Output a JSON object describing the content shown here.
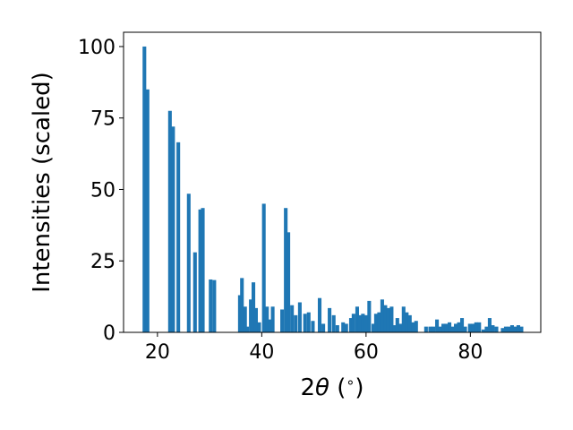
{
  "chart_data": {
    "type": "bar",
    "xlabel": "2θ (°)",
    "xlabel_prefix": "2",
    "xlabel_symbol": "θ",
    "xlabel_suffix": " (",
    "xlabel_degree": "∘",
    "xlabel_close": ")",
    "ylabel": "Intensities (scaled)",
    "xlim": [
      13.5,
      93.5
    ],
    "ylim": [
      0,
      105
    ],
    "xticks": [
      20,
      40,
      60,
      80
    ],
    "yticks": [
      0,
      25,
      50,
      75,
      100
    ],
    "bar_width": 0.7,
    "color": "#1f77b4",
    "grid": false,
    "x": [
      17.5,
      18.1,
      22.4,
      23.0,
      24.0,
      26.0,
      27.2,
      28.2,
      28.7,
      30.2,
      30.9,
      35.8,
      36.2,
      36.8,
      37.2,
      37.9,
      38.4,
      38.9,
      39.5,
      40.4,
      41.0,
      41.5,
      42.1,
      43.9,
      44.6,
      45.1,
      45.8,
      46.5,
      47.3,
      48.3,
      49.0,
      49.8,
      51.1,
      51.8,
      53.0,
      53.8,
      54.5,
      55.6,
      56.2,
      57.1,
      57.6,
      58.3,
      58.8,
      59.4,
      60.0,
      60.6,
      61.4,
      61.9,
      62.5,
      63.1,
      63.7,
      64.3,
      64.9,
      65.5,
      66.0,
      66.6,
      67.2,
      67.8,
      68.4,
      69.0,
      69.6,
      71.5,
      72.3,
      72.9,
      73.6,
      74.2,
      74.8,
      75.4,
      76.0,
      76.6,
      77.2,
      77.8,
      78.4,
      79.0,
      79.9,
      80.5,
      81.1,
      81.7,
      82.5,
      83.1,
      83.7,
      84.3,
      85.0,
      86.2,
      86.8,
      87.4,
      88.0,
      88.6,
      89.2,
      89.8
    ],
    "values": [
      100,
      85,
      77.5,
      72,
      66.5,
      48.5,
      28,
      43,
      43.5,
      18.5,
      18.3,
      13,
      19,
      9,
      2,
      11.5,
      17.5,
      8.5,
      3.5,
      45,
      9,
      4.5,
      9,
      8,
      43.5,
      35,
      9.5,
      6,
      10.5,
      6.5,
      7,
      4,
      12,
      3,
      8.5,
      6,
      2.5,
      3.5,
      3,
      5,
      6.5,
      9,
      6,
      6.5,
      6,
      11,
      3,
      6.5,
      7,
      11.5,
      9.5,
      8.5,
      9,
      2.5,
      5,
      3,
      9,
      7,
      6,
      3.5,
      4,
      2,
      2,
      2,
      4.5,
      2,
      3,
      3,
      3.5,
      2,
      3,
      3.5,
      5,
      2,
      3,
      3,
      3.5,
      3.5,
      1,
      2,
      5,
      2.5,
      2,
      1.5,
      2,
      2,
      2.5,
      2,
      2.5,
      2
    ]
  }
}
